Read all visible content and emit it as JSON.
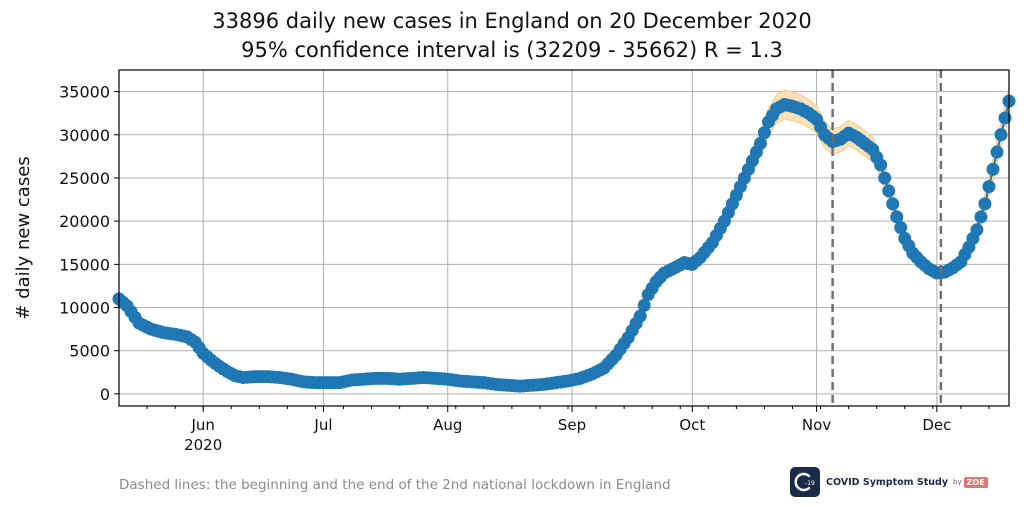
{
  "chart_data": {
    "type": "line",
    "title_line1": "33896 daily new cases in England on 20 December 2020",
    "title_line2": "95% confidence interval is (32209 - 35662) R = 1.3",
    "ylabel": "# daily new cases",
    "xlabel": "",
    "ylim": [
      -1400,
      37500
    ],
    "yticks": [
      0,
      5000,
      10000,
      15000,
      20000,
      25000,
      30000,
      35000
    ],
    "xlim_days": [
      0,
      222
    ],
    "xticks": [
      {
        "day": 21,
        "label": "Jun",
        "sublabel": "2020"
      },
      {
        "day": 51,
        "label": "Jul",
        "sublabel": ""
      },
      {
        "day": 82,
        "label": "Aug",
        "sublabel": ""
      },
      {
        "day": 113,
        "label": "Sep",
        "sublabel": ""
      },
      {
        "day": 143,
        "label": "Oct",
        "sublabel": ""
      },
      {
        "day": 174,
        "label": "Nov",
        "sublabel": ""
      },
      {
        "day": 204,
        "label": "Dec",
        "sublabel": ""
      }
    ],
    "dashed_lines_days": [
      178,
      205
    ],
    "x_start_date": "2020-05-11",
    "series_name": "daily new cases",
    "ci_relative_width": 0.05,
    "anchors": [
      [
        0,
        11000
      ],
      [
        2,
        10200
      ],
      [
        5,
        8200
      ],
      [
        8,
        7500
      ],
      [
        11,
        7100
      ],
      [
        14,
        6900
      ],
      [
        17,
        6600
      ],
      [
        19,
        6000
      ],
      [
        21,
        4700
      ],
      [
        23,
        3900
      ],
      [
        25,
        3200
      ],
      [
        27,
        2600
      ],
      [
        29,
        2100
      ],
      [
        31,
        1900
      ],
      [
        34,
        2000
      ],
      [
        37,
        2000
      ],
      [
        40,
        1900
      ],
      [
        43,
        1700
      ],
      [
        46,
        1400
      ],
      [
        49,
        1300
      ],
      [
        52,
        1300
      ],
      [
        55,
        1300
      ],
      [
        58,
        1600
      ],
      [
        61,
        1700
      ],
      [
        64,
        1800
      ],
      [
        67,
        1800
      ],
      [
        70,
        1700
      ],
      [
        73,
        1800
      ],
      [
        76,
        1900
      ],
      [
        79,
        1800
      ],
      [
        82,
        1700
      ],
      [
        85,
        1500
      ],
      [
        88,
        1400
      ],
      [
        91,
        1300
      ],
      [
        94,
        1100
      ],
      [
        97,
        1000
      ],
      [
        100,
        900
      ],
      [
        103,
        1000
      ],
      [
        106,
        1100
      ],
      [
        109,
        1300
      ],
      [
        112,
        1500
      ],
      [
        115,
        1800
      ],
      [
        118,
        2300
      ],
      [
        121,
        3000
      ],
      [
        124,
        4500
      ],
      [
        127,
        6500
      ],
      [
        130,
        9000
      ],
      [
        132,
        11500
      ],
      [
        134,
        13000
      ],
      [
        136,
        14000
      ],
      [
        139,
        14700
      ],
      [
        141,
        15200
      ],
      [
        143,
        15000
      ],
      [
        145,
        15800
      ],
      [
        148,
        17500
      ],
      [
        151,
        20000
      ],
      [
        154,
        23000
      ],
      [
        157,
        26000
      ],
      [
        160,
        29000
      ],
      [
        162,
        31500
      ],
      [
        164,
        33000
      ],
      [
        166,
        33500
      ],
      [
        168,
        33300
      ],
      [
        170,
        33000
      ],
      [
        172,
        32500
      ],
      [
        174,
        31800
      ],
      [
        176,
        30000
      ],
      [
        178,
        29200
      ],
      [
        180,
        29500
      ],
      [
        182,
        30200
      ],
      [
        184,
        29700
      ],
      [
        186,
        29000
      ],
      [
        188,
        28300
      ],
      [
        190,
        26500
      ],
      [
        192,
        23500
      ],
      [
        194,
        20500
      ],
      [
        196,
        18000
      ],
      [
        198,
        16300
      ],
      [
        200,
        15300
      ],
      [
        202,
        14500
      ],
      [
        204,
        14000
      ],
      [
        206,
        14100
      ],
      [
        208,
        14600
      ],
      [
        210,
        15300
      ],
      [
        212,
        17000
      ],
      [
        214,
        19000
      ],
      [
        216,
        22000
      ],
      [
        218,
        26000
      ],
      [
        220,
        30000
      ],
      [
        222,
        33896
      ]
    ]
  },
  "footnote": "Dashed lines: the beginning and the end of the 2nd national lockdown in England",
  "brand": {
    "badge": "-19",
    "name": "COVID Symptom Study",
    "by": "by",
    "zoe": "ZOE"
  },
  "colors": {
    "line": "#1f77b4",
    "ci": "#fbe0b8",
    "ci_edge": "#f6c27a",
    "grid": "#b0b0b0",
    "dashed": "#707070"
  }
}
